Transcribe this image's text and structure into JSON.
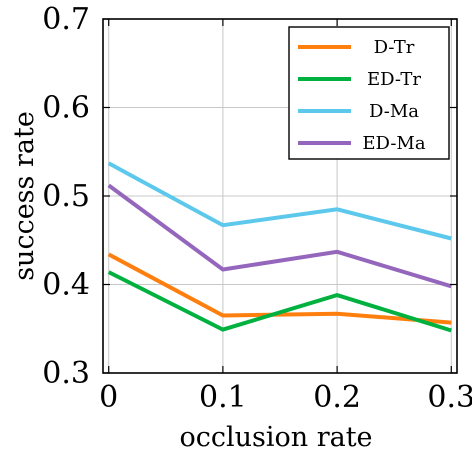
{
  "chart_data": {
    "type": "line",
    "x": [
      0,
      0.1,
      0.2,
      0.3
    ],
    "x_tick_labels": [
      "0",
      "0.1",
      "0.2",
      "0.3"
    ],
    "y_tick_values": [
      0.3,
      0.4,
      0.5,
      0.6,
      0.7
    ],
    "y_tick_labels": [
      "0.3",
      "0.4",
      "0.5",
      "0.6",
      "0.7"
    ],
    "xlabel": "occlusion rate",
    "ylabel": "success rate",
    "xlim": [
      -0.005,
      0.305
    ],
    "ylim": [
      0.3,
      0.7
    ],
    "grid": true,
    "legend_position": "top-right",
    "series": [
      {
        "name": "D-Tr",
        "color": "#ff7f0e",
        "values": [
          0.434,
          0.365,
          0.367,
          0.357
        ]
      },
      {
        "name": "ED-Tr",
        "color": "#00b140",
        "values": [
          0.414,
          0.349,
          0.388,
          0.348
        ]
      },
      {
        "name": "D-Ma",
        "color": "#5bc8ec",
        "values": [
          0.537,
          0.467,
          0.485,
          0.452
        ]
      },
      {
        "name": "ED-Ma",
        "color": "#9467bd",
        "values": [
          0.512,
          0.417,
          0.437,
          0.398
        ]
      }
    ]
  }
}
